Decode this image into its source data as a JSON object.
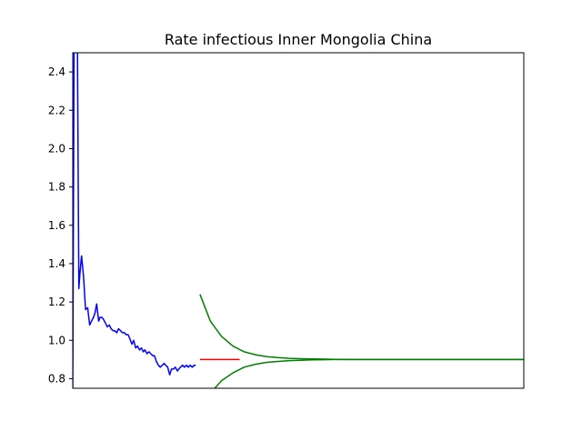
{
  "chart_data": {
    "type": "line",
    "title": "Rate infectious Inner Mongolia China",
    "xlabel": "",
    "ylabel": "",
    "x_ticks_visible": false,
    "xlim": [
      0,
      200
    ],
    "ylim": [
      0.75,
      2.5
    ],
    "y_ticks": [
      0.8,
      1.0,
      1.2,
      1.4,
      1.6,
      1.8,
      2.0,
      2.2,
      2.4
    ],
    "y_tick_labels": [
      "0.8",
      "1.0",
      "1.2",
      "1.4",
      "1.6",
      "1.8",
      "2.0",
      "2.2",
      "2.4"
    ],
    "grid": false,
    "series": [
      {
        "color": "#0000ff",
        "x": [
          0.0,
          0.8,
          1.5,
          2.1,
          2.7,
          3.2,
          3.9,
          4.8,
          5.7,
          6.6,
          7.5,
          8.3,
          9.2,
          9.8,
          10.6,
          11.5,
          12.1,
          12.9,
          13.6,
          14.5,
          15.3,
          16.2,
          17.0,
          17.9,
          18.6,
          19.5,
          20.3,
          21.2,
          22.0,
          22.9,
          23.6,
          24.5,
          25.3,
          26.2,
          27.0,
          27.9,
          28.7,
          29.6,
          30.5,
          31.3,
          32.0,
          32.9,
          33.8,
          34.6,
          35.5,
          36.2,
          37.1,
          38.0,
          38.8,
          39.7,
          40.5,
          41.2,
          42.1,
          43.0,
          43.8,
          44.7,
          45.5,
          46.4,
          47.0,
          47.8,
          48.7,
          49.5,
          50.4,
          51.2,
          52.1,
          53.0,
          53.8,
          54.5
        ],
        "y": [
          0.75,
          3.2,
          2.9,
          2.5,
          1.27,
          1.35,
          1.44,
          1.33,
          1.16,
          1.17,
          1.08,
          1.1,
          1.12,
          1.14,
          1.19,
          1.1,
          1.12,
          1.12,
          1.11,
          1.09,
          1.07,
          1.08,
          1.06,
          1.05,
          1.05,
          1.04,
          1.06,
          1.05,
          1.04,
          1.04,
          1.03,
          1.03,
          1.01,
          0.98,
          1.0,
          0.96,
          0.97,
          0.95,
          0.96,
          0.94,
          0.95,
          0.93,
          0.94,
          0.93,
          0.92,
          0.92,
          0.89,
          0.87,
          0.86,
          0.87,
          0.88,
          0.87,
          0.86,
          0.82,
          0.85,
          0.85,
          0.86,
          0.84,
          0.85,
          0.86,
          0.87,
          0.86,
          0.87,
          0.86,
          0.87,
          0.86,
          0.87,
          0.87
        ]
      },
      {
        "color": "#ff0000",
        "x": [
          56.4,
          74.0
        ],
        "y": [
          0.9,
          0.9
        ]
      },
      {
        "color": "#008000",
        "x": [
          56.4,
          61.0,
          66.0,
          71.0,
          76.0,
          81.0,
          86.0,
          91.0,
          96.0,
          101.0,
          106.0,
          111.0,
          116.0,
          121.0,
          126.0,
          131.0,
          136.0,
          141.0,
          151.0,
          161.0,
          171.0,
          181.0,
          191.0,
          200.0
        ],
        "y": [
          1.24,
          1.1,
          1.02,
          0.97,
          0.94,
          0.925,
          0.915,
          0.91,
          0.906,
          0.904,
          0.903,
          0.902,
          0.901,
          0.9,
          0.9,
          0.9,
          0.9,
          0.9,
          0.9,
          0.9,
          0.9,
          0.9,
          0.9,
          0.9
        ]
      },
      {
        "color": "#008000",
        "x": [
          63.0,
          66.0,
          71.0,
          76.0,
          81.0,
          86.0,
          91.0,
          96.0,
          101.0,
          106.0,
          111.0,
          116.0,
          121.0,
          126.0,
          131.0,
          136.0,
          141.0,
          151.0,
          161.0,
          171.0,
          181.0,
          191.0,
          200.0
        ],
        "y": [
          0.75,
          0.79,
          0.83,
          0.86,
          0.875,
          0.885,
          0.89,
          0.894,
          0.896,
          0.898,
          0.899,
          0.9,
          0.9,
          0.9,
          0.9,
          0.9,
          0.9,
          0.9,
          0.9,
          0.9,
          0.9,
          0.9,
          0.9
        ]
      }
    ]
  }
}
